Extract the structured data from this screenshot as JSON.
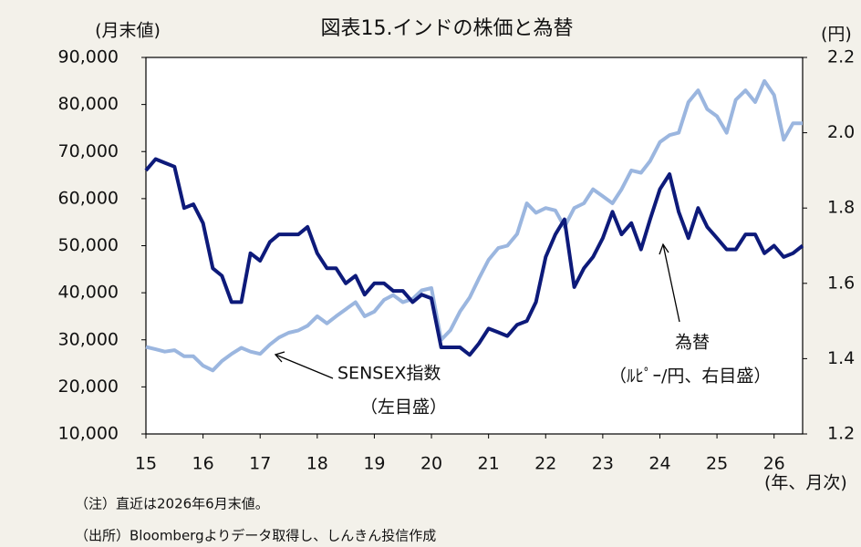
{
  "chart_data": {
    "type": "line",
    "title": "図表15.インドの株価と為替",
    "y_label": "(月末値)",
    "y2_label": "(円)",
    "x_label": "(年、月次)",
    "annotations": [
      "SENSEX指数",
      "（左目盛）",
      "為替",
      "（ﾙﾋﾟｰ/円、右目盛）"
    ],
    "notes": [
      "（注）直近は2026年6月末値。",
      "（出所）Bloombergよりデータ取得し、しんきん投信作成"
    ],
    "x": [
      15,
      15.17,
      15.33,
      15.5,
      15.67,
      15.83,
      16,
      16.17,
      16.33,
      16.5,
      16.67,
      16.83,
      17,
      17.17,
      17.33,
      17.5,
      17.67,
      17.83,
      18,
      18.17,
      18.33,
      18.5,
      18.67,
      18.83,
      19,
      19.17,
      19.33,
      19.5,
      19.67,
      19.83,
      20,
      20.17,
      20.33,
      20.5,
      20.67,
      20.83,
      21,
      21.17,
      21.33,
      21.5,
      21.67,
      21.83,
      22,
      22.17,
      22.33,
      22.5,
      22.67,
      22.83,
      23,
      23.17,
      23.33,
      23.5,
      23.67,
      23.83,
      24,
      24.17,
      24.33,
      24.5,
      24.67,
      24.83,
      25,
      25.17,
      25.33,
      25.5,
      25.67,
      25.83,
      26,
      26.17,
      26.33,
      26.5
    ],
    "series": [
      {
        "name": "SENSEX指数",
        "color": "#9bb6df",
        "values": [
          28500,
          28000,
          27500,
          27800,
          26500,
          26500,
          24500,
          23500,
          25500,
          27000,
          28300,
          27500,
          27000,
          29000,
          30500,
          31500,
          32000,
          33000,
          35000,
          33500,
          35000,
          36500,
          38000,
          35000,
          36000,
          38500,
          39500,
          38000,
          38700,
          40500,
          41000,
          30000,
          32000,
          36000,
          39000,
          43000,
          47000,
          49500,
          50000,
          52500,
          59000,
          57000,
          58000,
          57500,
          54000,
          58000,
          59000,
          62000,
          60500,
          59000,
          62000,
          66000,
          65500,
          68000,
          72000,
          73500,
          74000,
          80500,
          83000,
          79000,
          77500,
          74000,
          81000,
          83000,
          80500,
          85000,
          82000,
          72500,
          76000,
          76000
        ]
      },
      {
        "name": "為替",
        "color": "#0d1a7a",
        "axis": "y2",
        "values": [
          1.9,
          1.93,
          1.92,
          1.91,
          1.8,
          1.81,
          1.76,
          1.64,
          1.62,
          1.55,
          1.55,
          1.68,
          1.66,
          1.71,
          1.73,
          1.73,
          1.73,
          1.75,
          1.68,
          1.64,
          1.64,
          1.6,
          1.62,
          1.57,
          1.6,
          1.6,
          1.58,
          1.58,
          1.55,
          1.57,
          1.56,
          1.43,
          1.43,
          1.43,
          1.41,
          1.44,
          1.48,
          1.47,
          1.46,
          1.49,
          1.5,
          1.55,
          1.67,
          1.73,
          1.77,
          1.59,
          1.64,
          1.67,
          1.72,
          1.79,
          1.73,
          1.76,
          1.69,
          1.77,
          1.85,
          1.89,
          1.79,
          1.72,
          1.8,
          1.75,
          1.72,
          1.69,
          1.69,
          1.73,
          1.73,
          1.68,
          1.7,
          1.67,
          1.68,
          1.7
        ]
      }
    ],
    "xlim": [
      15,
      26.5
    ],
    "xticks": [
      15,
      16,
      17,
      18,
      19,
      20,
      21,
      22,
      23,
      24,
      25,
      26
    ],
    "ylim": [
      10000,
      90000
    ],
    "yticks": [
      {
        "value": 10000,
        "label": "10,000"
      },
      {
        "value": 20000,
        "label": "20,000"
      },
      {
        "value": 30000,
        "label": "30,000"
      },
      {
        "value": 40000,
        "label": "40,000"
      },
      {
        "value": 50000,
        "label": "50,000"
      },
      {
        "value": 60000,
        "label": "60,000"
      },
      {
        "value": 70000,
        "label": "70,000"
      },
      {
        "value": 80000,
        "label": "80,000"
      },
      {
        "value": 90000,
        "label": "90,000"
      }
    ],
    "y2lim": [
      1.2,
      2.2
    ],
    "y2ticks": [
      {
        "value": 1.2,
        "label": "1.2"
      },
      {
        "value": 1.4,
        "label": "1.4"
      },
      {
        "value": 1.6,
        "label": "1.6"
      },
      {
        "value": 1.8,
        "label": "1.8"
      },
      {
        "value": 2.0,
        "label": "2.0"
      },
      {
        "value": 2.2,
        "label": "2.2"
      }
    ]
  }
}
